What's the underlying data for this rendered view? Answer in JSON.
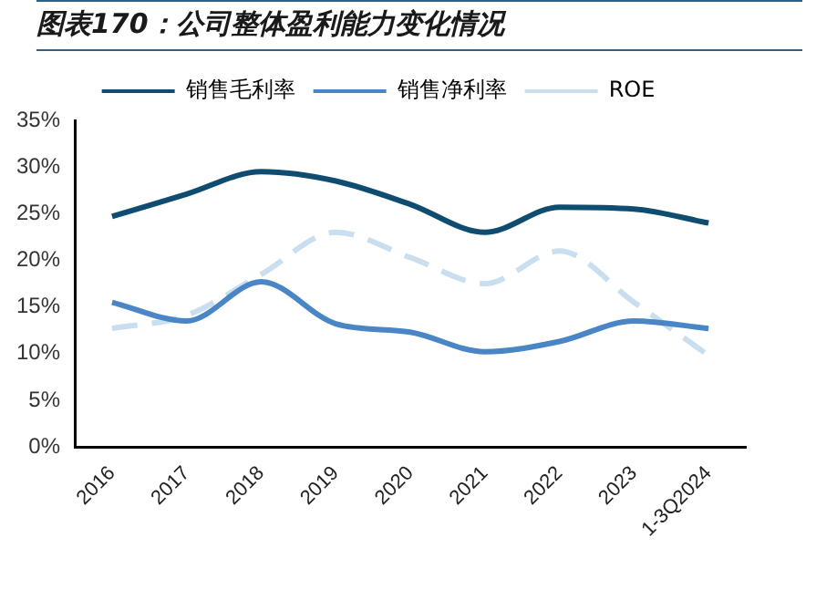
{
  "chart_data": {
    "type": "line",
    "title": "图表170：公司整体盈利能力变化情况",
    "categories": [
      "2016",
      "2017",
      "2018",
      "2019",
      "2020",
      "2021",
      "2022",
      "2023",
      "1-3Q2024"
    ],
    "series": [
      {
        "name": "销售毛利率",
        "color": "#0e4d71",
        "line_style": "solid",
        "values": [
          24.7,
          27.1,
          29.5,
          28.5,
          26.0,
          23.0,
          25.7,
          25.5,
          24.0
        ]
      },
      {
        "name": "销售净利率",
        "color": "#4a86c5",
        "line_style": "solid",
        "values": [
          15.5,
          13.5,
          17.7,
          13.2,
          12.3,
          10.2,
          11.3,
          13.5,
          12.7
        ]
      },
      {
        "name": "ROE",
        "color": "#c9deef",
        "line_style": "dashed",
        "values": [
          12.7,
          14.1,
          18.5,
          23.0,
          20.3,
          17.5,
          21.0,
          15.5,
          9.8
        ]
      }
    ],
    "ylim": [
      0,
      35
    ],
    "yticks": [
      {
        "value": 0,
        "label": "0%"
      },
      {
        "value": 5,
        "label": "5%"
      },
      {
        "value": 10,
        "label": "10%"
      },
      {
        "value": 15,
        "label": "15%"
      },
      {
        "value": 20,
        "label": "20%"
      },
      {
        "value": 25,
        "label": "25%"
      },
      {
        "value": 30,
        "label": "30%"
      },
      {
        "value": 35,
        "label": "35%"
      }
    ],
    "grid": false,
    "legend": "top",
    "marker": "none"
  }
}
